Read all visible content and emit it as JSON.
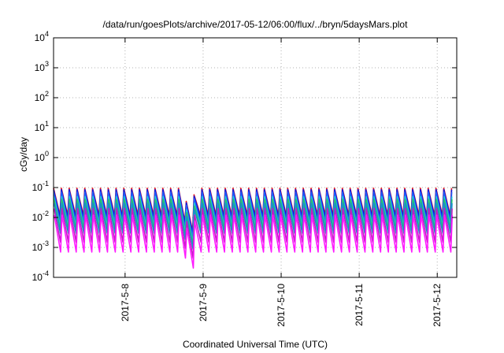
{
  "chart_data": {
    "type": "line",
    "title": "/data/run/goesPlots/archive/2017-05-12/06:00/flux/../bryn/5daysMars.plot",
    "xlabel": "Coordinated Universal Time (UTC)",
    "ylabel": "cGy/day",
    "y_scale": "log",
    "ylim": [
      0.0001,
      10000
    ],
    "xlim": [
      "2017-05-07T02:00",
      "2017-05-12T06:00"
    ],
    "grid": true,
    "y_ticks": [
      {
        "base": "10",
        "exp": "-4",
        "value": 0.0001
      },
      {
        "base": "10",
        "exp": "-3",
        "value": 0.001
      },
      {
        "base": "10",
        "exp": "-2",
        "value": 0.01
      },
      {
        "base": "10",
        "exp": "-1",
        "value": 0.1
      },
      {
        "base": "10",
        "exp": "0",
        "value": 1
      },
      {
        "base": "10",
        "exp": "1",
        "value": 10
      },
      {
        "base": "10",
        "exp": "2",
        "value": 100
      },
      {
        "base": "10",
        "exp": "3",
        "value": 1000
      },
      {
        "base": "10",
        "exp": "4",
        "value": 10000
      }
    ],
    "x_ticks": [
      {
        "label": "2017-5-8",
        "value": "2017-05-08T00:00"
      },
      {
        "label": "2017-5-9",
        "value": "2017-05-09T00:00"
      },
      {
        "label": "2017-5-10",
        "value": "2017-05-10T00:00"
      },
      {
        "label": "2017-5-11",
        "value": "2017-05-11T00:00"
      },
      {
        "label": "2017-5-12",
        "value": "2017-05-12T00:00"
      }
    ],
    "cycle_hours": 2.4,
    "series": [
      {
        "color": "#e8191e",
        "peak": 0.095,
        "trough": 0.012
      },
      {
        "color": "#0f19d9",
        "peak": 0.085,
        "trough": 0.01
      },
      {
        "color": "#1f5fff",
        "peak": 0.07,
        "trough": 0.007
      },
      {
        "color": "#20c8d8",
        "peak": 0.05,
        "trough": 0.005
      },
      {
        "color": "#29c26a",
        "peak": 0.04,
        "trough": 0.004
      },
      {
        "color": "#1a8fc9",
        "peak": 0.03,
        "trough": 0.003
      },
      {
        "color": "#c21cc2",
        "peak": 0.02,
        "trough": 0.0015
      },
      {
        "color": "#ff1aff",
        "peak": 0.012,
        "trough": 0.0007
      }
    ],
    "dip": {
      "start": "2017-05-08T18:00",
      "min": "2017-05-08T20:00",
      "end": "2017-05-08T21:30",
      "factor_min": 0.08
    }
  }
}
